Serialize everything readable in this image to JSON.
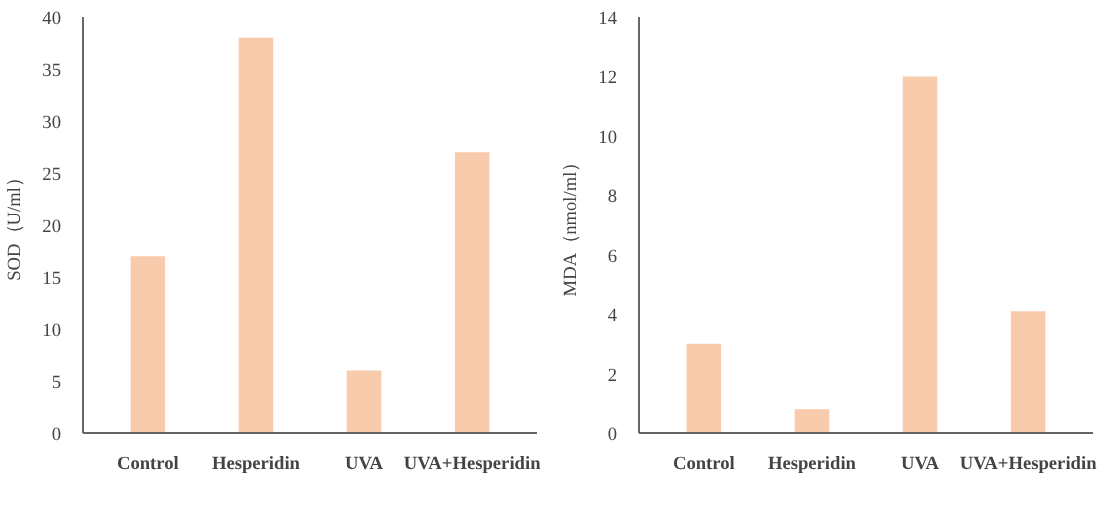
{
  "chart_data": [
    {
      "type": "bar",
      "categories": [
        "Control",
        "Hesperidin",
        "UVA",
        "UVA+Hesperidin"
      ],
      "values": [
        17,
        38,
        6,
        27
      ],
      "color": "#f8cbad",
      "ylabel": "SOD（U/ml）",
      "ylim": [
        0,
        40
      ],
      "yticks": [
        0,
        5,
        10,
        15,
        20,
        25,
        30,
        35,
        40
      ],
      "grid": false
    },
    {
      "type": "bar",
      "categories": [
        "Control",
        "Hesperidin",
        "UVA",
        "UVA+Hesperidin"
      ],
      "values": [
        3,
        0.8,
        12,
        4.1
      ],
      "color": "#f8cbad",
      "ylabel": "MDA（nmol/ml）",
      "ylim": [
        0,
        14
      ],
      "yticks": [
        0,
        2,
        4,
        6,
        8,
        10,
        12,
        14
      ],
      "grid": false
    }
  ]
}
